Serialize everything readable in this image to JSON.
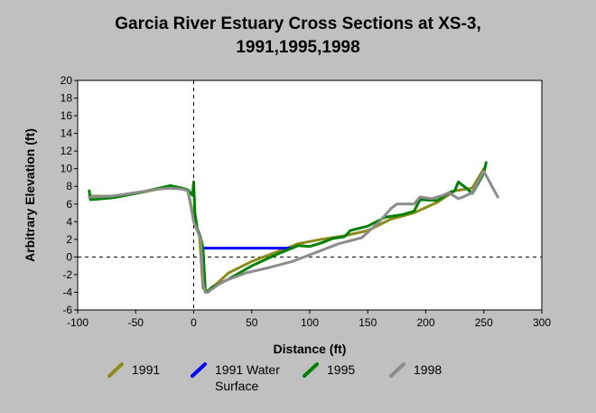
{
  "chart_data": {
    "type": "line",
    "title_lines": [
      "Garcia River Estuary Cross Sections at XS-3,",
      "1991,1995,1998"
    ],
    "xlabel": "Distance (ft)",
    "ylabel": "Arbitrary Elevation (ft)",
    "xlim": [
      -100,
      300
    ],
    "ylim": [
      -6,
      20
    ],
    "x_ticks": [
      -100,
      -50,
      0,
      50,
      100,
      150,
      200,
      250,
      300
    ],
    "y_ticks": [
      -6,
      -4,
      -2,
      0,
      2,
      4,
      6,
      8,
      10,
      12,
      14,
      16,
      18,
      20
    ],
    "reference_lines": {
      "x": 0,
      "y": 0,
      "style": "dashed"
    },
    "grid": false,
    "legend_position": "bottom",
    "series": [
      {
        "name": "1991",
        "color": "#8b8b1a",
        "x": [
          -90,
          -70,
          -50,
          -30,
          -20,
          -10,
          -5,
          0,
          2,
          5,
          8,
          10,
          12,
          15,
          20,
          30,
          50,
          70,
          90,
          110,
          130,
          150,
          170,
          190,
          210,
          225,
          240,
          250
        ],
        "y": [
          6.9,
          6.9,
          7.2,
          7.7,
          7.9,
          7.8,
          7.5,
          4.5,
          3.5,
          2.5,
          -3.5,
          -3.8,
          -3.9,
          -3.5,
          -3.0,
          -1.8,
          -0.5,
          0.5,
          1.5,
          2.0,
          2.4,
          3.0,
          4.3,
          5.0,
          6.2,
          7.5,
          7.8,
          10.0
        ]
      },
      {
        "name": "1991 Water Surface",
        "color": "#0000ff",
        "x": [
          7,
          85
        ],
        "y": [
          1.0,
          1.0
        ]
      },
      {
        "name": "1995",
        "color": "#008000",
        "x": [
          -90,
          -89,
          -88,
          -70,
          -50,
          -30,
          -20,
          -10,
          -5,
          -1,
          0,
          1,
          3,
          6,
          8,
          10,
          12,
          15,
          20,
          30,
          50,
          70,
          90,
          100,
          110,
          120,
          130,
          135,
          150,
          165,
          180,
          190,
          195,
          210,
          220,
          225,
          228,
          235,
          240,
          245,
          250,
          252
        ],
        "y": [
          7.5,
          6.5,
          6.5,
          6.7,
          7.2,
          7.8,
          8.1,
          7.8,
          7.6,
          7.0,
          8.5,
          5.0,
          3.2,
          2.2,
          1.0,
          -3.8,
          -3.9,
          -3.5,
          -3.2,
          -2.5,
          -1.0,
          0.2,
          1.3,
          1.2,
          1.6,
          2.1,
          2.3,
          3.0,
          3.5,
          4.5,
          4.8,
          5.2,
          6.5,
          6.4,
          7.3,
          7.5,
          8.5,
          7.8,
          7.2,
          8.3,
          9.5,
          10.7
        ]
      },
      {
        "name": "1998",
        "color": "#8c8c8c",
        "x": [
          -90,
          -70,
          -50,
          -30,
          -20,
          -10,
          -5,
          0,
          3,
          6,
          8,
          10,
          12,
          15,
          25,
          45,
          65,
          85,
          105,
          125,
          145,
          160,
          170,
          175,
          190,
          195,
          205,
          210,
          215,
          220,
          228,
          232,
          240,
          245,
          250,
          255,
          262
        ],
        "y": [
          6.8,
          6.9,
          7.3,
          7.7,
          7.8,
          7.7,
          7.5,
          4.0,
          3.0,
          2.0,
          -3.0,
          -4.0,
          -4.0,
          -3.7,
          -2.8,
          -1.8,
          -1.2,
          -0.5,
          0.5,
          1.5,
          2.2,
          4.0,
          5.5,
          6.0,
          6.0,
          6.8,
          6.6,
          6.8,
          7.0,
          7.3,
          6.6,
          6.8,
          7.3,
          8.5,
          9.7,
          8.5,
          6.8
        ]
      }
    ]
  }
}
